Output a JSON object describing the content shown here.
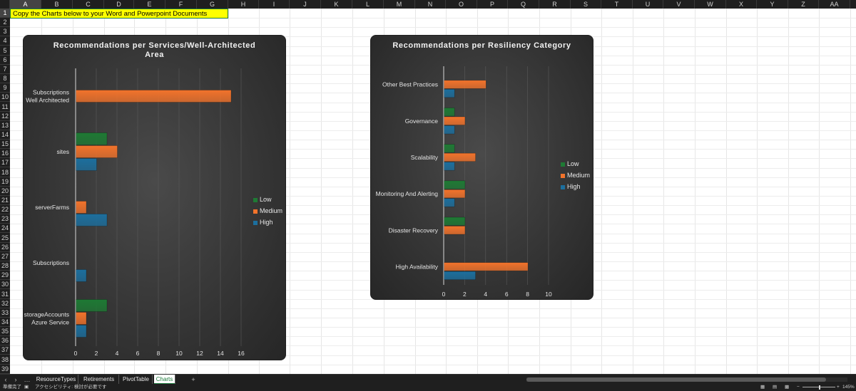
{
  "sheet": {
    "columns": [
      "A",
      "B",
      "C",
      "D",
      "E",
      "F",
      "G",
      "H",
      "I",
      "J",
      "K",
      "L",
      "M",
      "N",
      "O",
      "P",
      "Q",
      "R",
      "S",
      "T",
      "U",
      "V",
      "W",
      "X",
      "Y",
      "Z",
      "AA"
    ],
    "rows": [
      "1",
      "2",
      "3",
      "4",
      "5",
      "6",
      "7",
      "8",
      "9",
      "10",
      "11",
      "12",
      "13",
      "14",
      "15",
      "16",
      "17",
      "18",
      "19",
      "20",
      "21",
      "22",
      "23",
      "24",
      "25",
      "26",
      "27",
      "28",
      "29",
      "30",
      "31",
      "32",
      "33",
      "34",
      "35",
      "36",
      "37",
      "38",
      "39"
    ],
    "a1_text": "Copy the Charts below to your Word and Powerpoint Documents"
  },
  "legend": {
    "colors": {
      "Low": "#1e7a34",
      "Medium": "#f2732b",
      "High": "#1c6f9e"
    }
  },
  "chart_data": [
    {
      "type": "bar",
      "orientation": "horizontal",
      "title": "Recommendations per Services/Well-Architected Area",
      "categories": [
        "Subscriptions\nWell Architected",
        "sites",
        "serverFarms",
        "Subscriptions",
        "storageAccounts\nAzure Service"
      ],
      "series": [
        {
          "name": "Low",
          "values": [
            0,
            3,
            0,
            0,
            3
          ]
        },
        {
          "name": "Medium",
          "values": [
            15,
            4,
            1,
            0,
            1
          ]
        },
        {
          "name": "High",
          "values": [
            0,
            2,
            3,
            1,
            1
          ]
        }
      ],
      "xlim": [
        0,
        16
      ],
      "xticks": [
        "0",
        "2",
        "4",
        "6",
        "8",
        "10",
        "12",
        "14",
        "16"
      ],
      "grid": true,
      "legend": "right"
    },
    {
      "type": "bar",
      "orientation": "horizontal",
      "title": "Recommendations per Resiliency Category",
      "categories": [
        "Other Best Practices",
        "Governance",
        "Scalability",
        "Monitoring And Alerting",
        "Disaster Recovery",
        "High Availability"
      ],
      "series": [
        {
          "name": "Low",
          "values": [
            0,
            1,
            1,
            2,
            2,
            0
          ]
        },
        {
          "name": "Medium",
          "values": [
            4,
            2,
            3,
            2,
            2,
            8
          ]
        },
        {
          "name": "High",
          "values": [
            1,
            1,
            1,
            1,
            0,
            3
          ]
        }
      ],
      "xlim": [
        0,
        10
      ],
      "xticks": [
        "0",
        "2",
        "4",
        "6",
        "8",
        "10"
      ],
      "grid": true,
      "legend": "right"
    }
  ],
  "tabs": {
    "items": [
      "ResourceTypes",
      "Retirements",
      "PivotTable",
      "Charts"
    ],
    "active": "Charts",
    "more": "…",
    "add": "+"
  },
  "status": {
    "ready": "準備完了",
    "accessibility": "アクセシビリティ: 検討が必要です",
    "zoom": "145%",
    "zoom_minus": "−",
    "zoom_plus": "+"
  }
}
